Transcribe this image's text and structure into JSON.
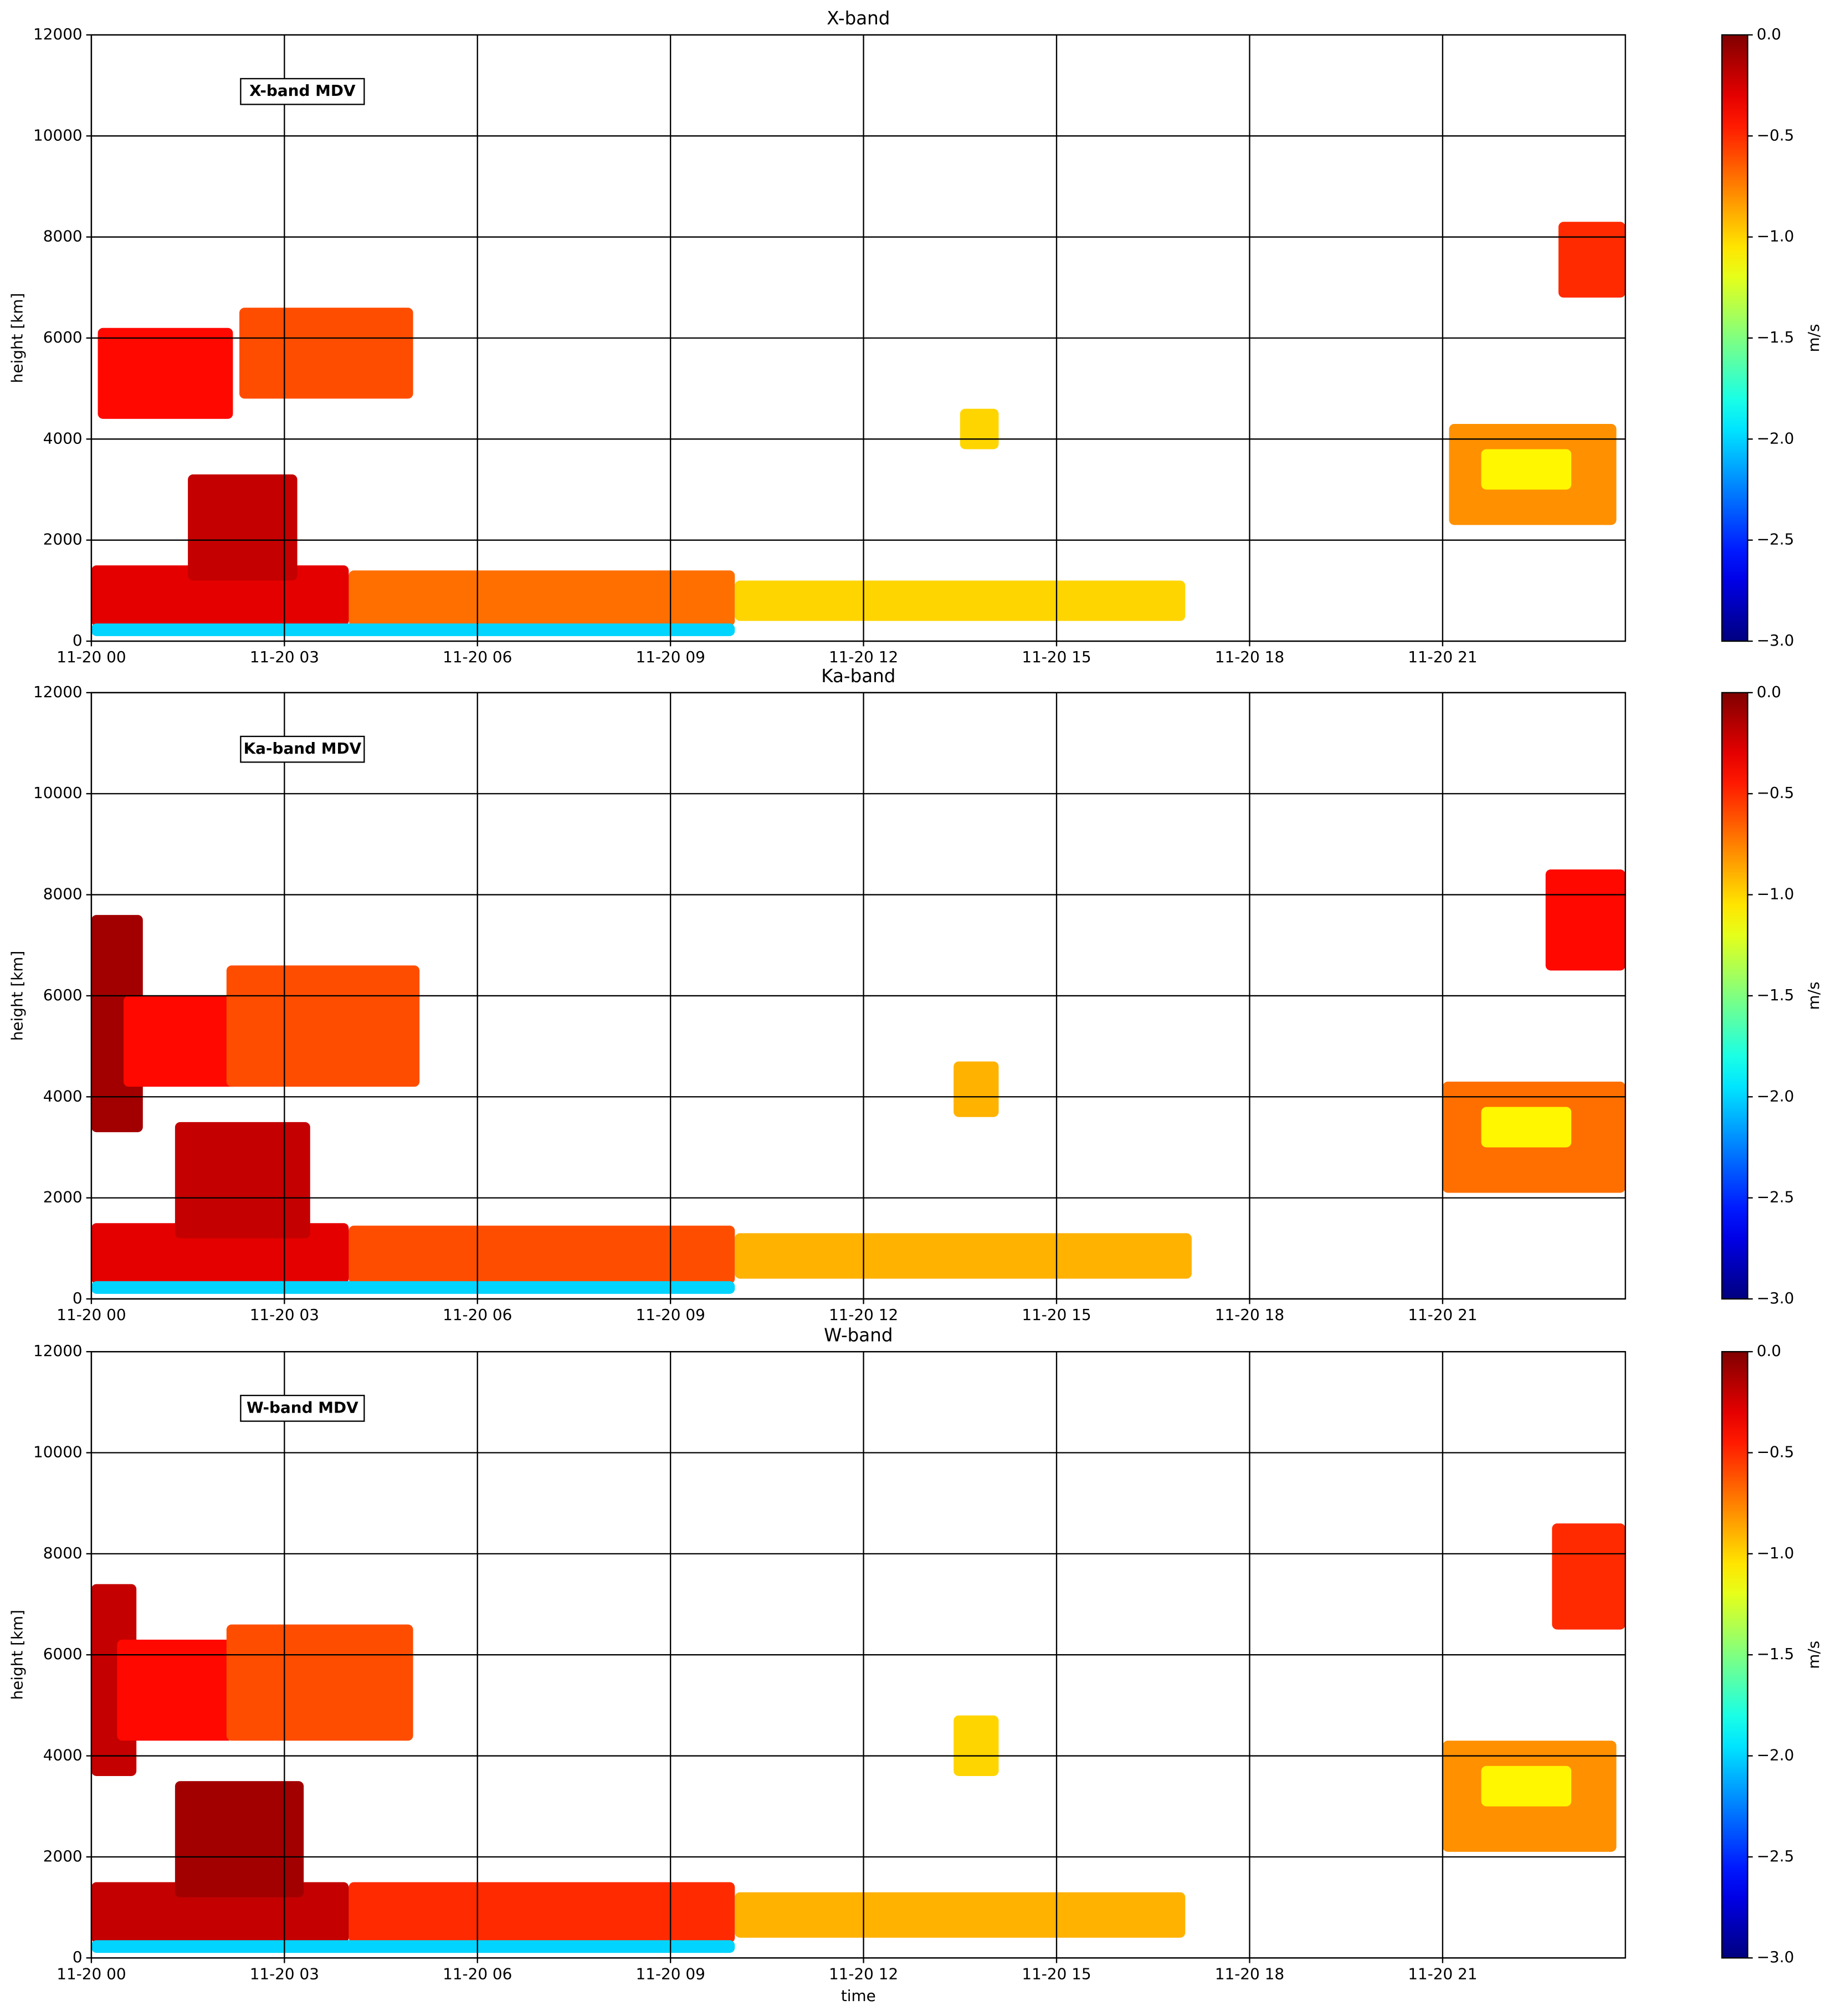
{
  "chart_data": [
    {
      "type": "heatmap",
      "title": "X-band",
      "annotation": "X-band MDV",
      "ylabel": "height [km]",
      "cmap": "jet",
      "grid": true,
      "xlim": [
        0,
        23.84
      ],
      "xticks": [
        {
          "value": 0,
          "label": "11-20 00"
        },
        {
          "value": 3,
          "label": "11-20 03"
        },
        {
          "value": 6,
          "label": "11-20 06"
        },
        {
          "value": 9,
          "label": "11-20 09"
        },
        {
          "value": 12,
          "label": "11-20 12"
        },
        {
          "value": 15,
          "label": "11-20 15"
        },
        {
          "value": 18,
          "label": "11-20 18"
        },
        {
          "value": 21,
          "label": "11-20 21"
        }
      ],
      "ylim": [
        0,
        12000
      ],
      "yticks": [
        0,
        2000,
        4000,
        6000,
        8000,
        10000,
        12000
      ],
      "colorbar": {
        "label": "m/s",
        "clim": [
          -3,
          0
        ],
        "ticks": [
          {
            "value": 0,
            "label": "0.0"
          },
          {
            "value": -0.5,
            "label": "−0.5"
          },
          {
            "value": -1,
            "label": "−1.0"
          },
          {
            "value": -1.5,
            "label": "−1.5"
          },
          {
            "value": -2,
            "label": "−2.0"
          },
          {
            "value": -2.5,
            "label": "−2.5"
          },
          {
            "value": -3,
            "label": "−3.0"
          }
        ]
      },
      "cells": [
        {
          "t": [
            0,
            4
          ],
          "h": [
            300,
            1500
          ],
          "v": -0.3
        },
        {
          "t": [
            4,
            10
          ],
          "h": [
            300,
            1400
          ],
          "v": -0.7
        },
        {
          "t": [
            10,
            17
          ],
          "h": [
            400,
            1200
          ],
          "v": -1.0
        },
        {
          "t": [
            0,
            10
          ],
          "h": [
            100,
            350
          ],
          "v": -2.0
        },
        {
          "t": [
            1.5,
            3.2
          ],
          "h": [
            1200,
            3300
          ],
          "v": -0.2
        },
        {
          "t": [
            0.1,
            2.2
          ],
          "h": [
            4400,
            6200
          ],
          "v": -0.4
        },
        {
          "t": [
            2.3,
            5
          ],
          "h": [
            4800,
            6600
          ],
          "v": -0.6
        },
        {
          "t": [
            13.5,
            14.1
          ],
          "h": [
            3800,
            4600
          ],
          "v": -1.0
        },
        {
          "t": [
            22.8,
            23.84
          ],
          "h": [
            6800,
            8300
          ],
          "v": -0.5
        },
        {
          "t": [
            21.1,
            23.7
          ],
          "h": [
            2300,
            4300
          ],
          "v": -0.8
        },
        {
          "t": [
            21.6,
            23
          ],
          "h": [
            3000,
            3800
          ],
          "v": -1.1
        }
      ]
    },
    {
      "type": "heatmap",
      "title": "Ka-band",
      "annotation": "Ka-band MDV",
      "ylabel": "height [km]",
      "cmap": "jet",
      "grid": true,
      "xlim": [
        0,
        23.84
      ],
      "xticks": [
        {
          "value": 0,
          "label": "11-20 00"
        },
        {
          "value": 3,
          "label": "11-20 03"
        },
        {
          "value": 6,
          "label": "11-20 06"
        },
        {
          "value": 9,
          "label": "11-20 09"
        },
        {
          "value": 12,
          "label": "11-20 12"
        },
        {
          "value": 15,
          "label": "11-20 15"
        },
        {
          "value": 18,
          "label": "11-20 18"
        },
        {
          "value": 21,
          "label": "11-20 21"
        }
      ],
      "ylim": [
        0,
        12000
      ],
      "yticks": [
        0,
        2000,
        4000,
        6000,
        8000,
        10000,
        12000
      ],
      "colorbar": {
        "label": "m/s",
        "clim": [
          -3,
          0
        ],
        "ticks": [
          {
            "value": 0,
            "label": "0.0"
          },
          {
            "value": -0.5,
            "label": "−0.5"
          },
          {
            "value": -1,
            "label": "−1.0"
          },
          {
            "value": -1.5,
            "label": "−1.5"
          },
          {
            "value": -2,
            "label": "−2.0"
          },
          {
            "value": -2.5,
            "label": "−2.5"
          },
          {
            "value": -3,
            "label": "−3.0"
          }
        ]
      },
      "cells": [
        {
          "t": [
            0,
            4
          ],
          "h": [
            300,
            1500
          ],
          "v": -0.3
        },
        {
          "t": [
            4,
            10
          ],
          "h": [
            300,
            1450
          ],
          "v": -0.6
        },
        {
          "t": [
            10,
            17.1
          ],
          "h": [
            400,
            1300
          ],
          "v": -0.9
        },
        {
          "t": [
            0,
            10
          ],
          "h": [
            100,
            350
          ],
          "v": -2.0
        },
        {
          "t": [
            1.3,
            3.4
          ],
          "h": [
            1200,
            3500
          ],
          "v": -0.2
        },
        {
          "t": [
            0,
            0.8
          ],
          "h": [
            3300,
            7600
          ],
          "v": -0.1
        },
        {
          "t": [
            0.5,
            2.3
          ],
          "h": [
            4200,
            6000
          ],
          "v": -0.4
        },
        {
          "t": [
            2.1,
            5.1
          ],
          "h": [
            4200,
            6600
          ],
          "v": -0.6
        },
        {
          "t": [
            13.4,
            14.1
          ],
          "h": [
            3600,
            4700
          ],
          "v": -0.9
        },
        {
          "t": [
            22.6,
            23.84
          ],
          "h": [
            6500,
            8500
          ],
          "v": -0.4
        },
        {
          "t": [
            21,
            23.84
          ],
          "h": [
            2100,
            4300
          ],
          "v": -0.7
        },
        {
          "t": [
            21.6,
            23
          ],
          "h": [
            3000,
            3800
          ],
          "v": -1.1
        }
      ]
    },
    {
      "type": "heatmap",
      "title": "W-band",
      "annotation": "W-band MDV",
      "ylabel": "height [km]",
      "xlabel": "time",
      "cmap": "jet",
      "grid": true,
      "xlim": [
        0,
        23.84
      ],
      "xticks": [
        {
          "value": 0,
          "label": "11-20 00"
        },
        {
          "value": 3,
          "label": "11-20 03"
        },
        {
          "value": 6,
          "label": "11-20 06"
        },
        {
          "value": 9,
          "label": "11-20 09"
        },
        {
          "value": 12,
          "label": "11-20 12"
        },
        {
          "value": 15,
          "label": "11-20 15"
        },
        {
          "value": 18,
          "label": "11-20 18"
        },
        {
          "value": 21,
          "label": "11-20 21"
        }
      ],
      "ylim": [
        0,
        12000
      ],
      "yticks": [
        0,
        2000,
        4000,
        6000,
        8000,
        10000,
        12000
      ],
      "colorbar": {
        "label": "m/s",
        "clim": [
          -3,
          0
        ],
        "ticks": [
          {
            "value": 0,
            "label": "0.0"
          },
          {
            "value": -0.5,
            "label": "−0.5"
          },
          {
            "value": -1,
            "label": "−1.0"
          },
          {
            "value": -1.5,
            "label": "−1.5"
          },
          {
            "value": -2,
            "label": "−2.0"
          },
          {
            "value": -2.5,
            "label": "−2.5"
          },
          {
            "value": -3,
            "label": "−3.0"
          }
        ]
      },
      "cells": [
        {
          "t": [
            0,
            4
          ],
          "h": [
            300,
            1500
          ],
          "v": -0.2
        },
        {
          "t": [
            4,
            10
          ],
          "h": [
            300,
            1500
          ],
          "v": -0.5
        },
        {
          "t": [
            10,
            17
          ],
          "h": [
            400,
            1300
          ],
          "v": -0.9
        },
        {
          "t": [
            0,
            10
          ],
          "h": [
            100,
            350
          ],
          "v": -2.0
        },
        {
          "t": [
            1.3,
            3.3
          ],
          "h": [
            1200,
            3500
          ],
          "v": -0.1
        },
        {
          "t": [
            0,
            0.7
          ],
          "h": [
            3600,
            7400
          ],
          "v": -0.2
        },
        {
          "t": [
            0.4,
            2.2
          ],
          "h": [
            4300,
            6300
          ],
          "v": -0.4
        },
        {
          "t": [
            2.1,
            5
          ],
          "h": [
            4300,
            6600
          ],
          "v": -0.6
        },
        {
          "t": [
            13.4,
            14.1
          ],
          "h": [
            3600,
            4800
          ],
          "v": -1.0
        },
        {
          "t": [
            22.7,
            23.84
          ],
          "h": [
            6500,
            8600
          ],
          "v": -0.5
        },
        {
          "t": [
            21,
            23.7
          ],
          "h": [
            2100,
            4300
          ],
          "v": -0.8
        },
        {
          "t": [
            21.6,
            23
          ],
          "h": [
            3000,
            3800
          ],
          "v": -1.1
        }
      ]
    }
  ]
}
